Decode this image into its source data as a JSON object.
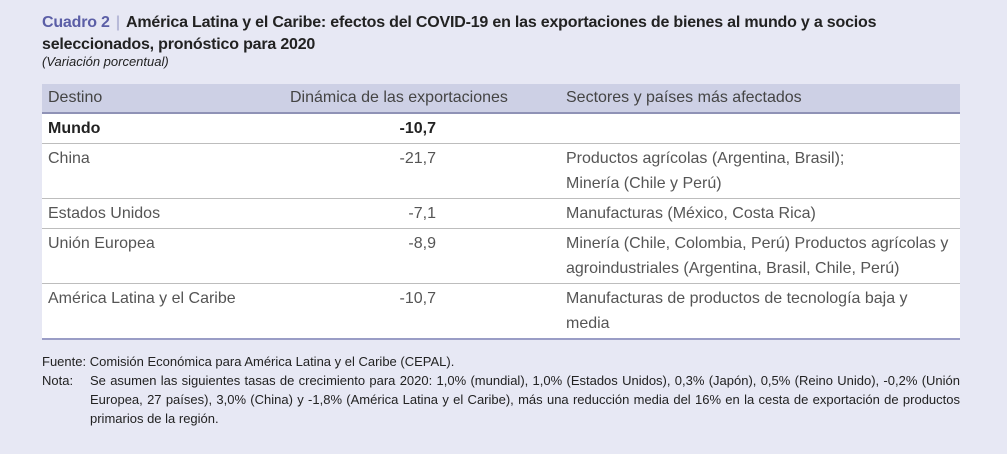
{
  "title": {
    "label": "Cuadro 2",
    "separator": "|",
    "text": "América Latina y el Caribe: efectos del COVID-19 en las exportaciones de bienes al mundo y a socios seleccionados, pronóstico para 2020",
    "subtitle": "(Variación porcentual)"
  },
  "table": {
    "headers": [
      "Destino",
      "Dinámica de las exportaciones",
      "Sectores y países más afectados"
    ],
    "rows": [
      {
        "destino": "Mundo",
        "valor": "-10,7",
        "sectores": ""
      },
      {
        "destino": "China",
        "valor": "-21,7",
        "sectores": "Productos agrícolas (Argentina, Brasil);\nMinería (Chile y Perú)"
      },
      {
        "destino": "Estados Unidos",
        "valor": "-7,1",
        "sectores": "Manufacturas (México, Costa Rica)"
      },
      {
        "destino": "Unión Europea",
        "valor": "-8,9",
        "sectores": "Minería (Chile, Colombia, Perú) Productos agrícolas y agroindustriales (Argentina, Brasil, Chile, Perú)"
      },
      {
        "destino": "América Latina y el Caribe",
        "valor": "-10,7",
        "sectores": "Manufacturas de productos de tecnología baja y media"
      }
    ]
  },
  "footer": {
    "fuente": "Fuente: Comisión Económica para América Latina y el Caribe (CEPAL).",
    "nota_label": "Nota:",
    "nota": "Se asumen las siguientes tasas de crecimiento para 2020: 1,0% (mundial), 1,0% (Estados Unidos), 0,3% (Japón), 0,5% (Reino Unido), -0,2% (Unión Europea, 27 países), 3,0% (China) y -1,8% (América Latina y el Caribe), más una reducción media del 16% en la cesta de exportación de productos primarios de la región."
  }
}
